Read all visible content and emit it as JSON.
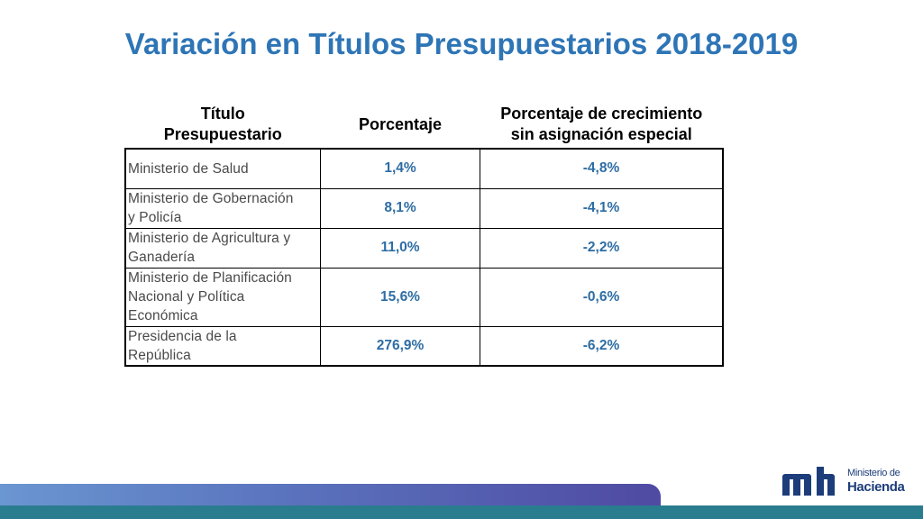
{
  "title": "Variación en Títulos Presupuestarios 2018-2019",
  "table": {
    "headers": {
      "titulo": [
        "Título",
        "Presupuestario"
      ],
      "porcentaje": "Porcentaje",
      "crecimiento": [
        "Porcentaje de crecimiento",
        "sin asignación especial"
      ]
    },
    "rows": [
      {
        "name": [
          "Ministerio de Salud"
        ],
        "pct": "1,4%",
        "growth": "-4,8%"
      },
      {
        "name": [
          "Ministerio de Gobernación",
          "y Policía"
        ],
        "pct": "8,1%",
        "growth": "-4,1%"
      },
      {
        "name": [
          "Ministerio de Agricultura y",
          "Ganadería"
        ],
        "pct": "11,0%",
        "growth": "-2,2%"
      },
      {
        "name": [
          "Ministerio de Planificación",
          "Nacional y Política",
          "Económica"
        ],
        "pct": "15,6%",
        "growth": "-0,6%"
      },
      {
        "name": [
          "Presidencia de la",
          "República"
        ],
        "pct": "276,9%",
        "growth": "-6,2%"
      }
    ]
  },
  "logo": {
    "line1": "Ministerio de",
    "line2": "Hacienda"
  },
  "colors": {
    "title": "#2e75b6",
    "values": "#2e6da4",
    "logo": "#1d3d7a"
  }
}
